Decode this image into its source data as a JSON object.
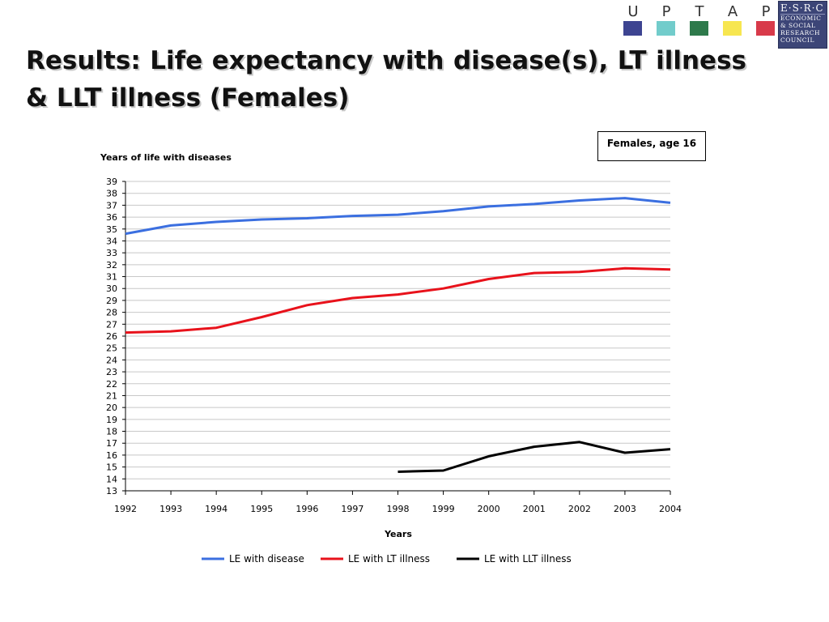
{
  "header": {
    "uptap_letters": [
      "U",
      "P",
      "T",
      "A",
      "P"
    ],
    "uptap_colors": [
      "#3d4491",
      "#72cccb",
      "#2e7a4b",
      "#f7e650",
      "#d83a4a"
    ],
    "esrc_top": "E·S·R·C",
    "esrc_lines": [
      "ECONOMIC",
      "& SOCIAL",
      "RESEARCH",
      "COUNCIL"
    ]
  },
  "slide": {
    "title": "Results: Life expectancy with disease(s), LT illness & LLT illness (Females)"
  },
  "chart_data": {
    "type": "line",
    "title": "Years of life with diseases",
    "annotation": "Females, age 16",
    "xlabel": "Years",
    "ylabel": "",
    "ylim": [
      13,
      39
    ],
    "yticks": [
      13,
      14,
      15,
      16,
      17,
      18,
      19,
      20,
      21,
      22,
      23,
      24,
      25,
      26,
      27,
      28,
      29,
      30,
      31,
      32,
      33,
      34,
      35,
      36,
      37,
      38,
      39
    ],
    "categories": [
      "1992",
      "1993",
      "1994",
      "1995",
      "1996",
      "1997",
      "1998",
      "1999",
      "2000",
      "2001",
      "2002",
      "2003",
      "2004"
    ],
    "grid": "horizontal",
    "legend_position": "bottom",
    "series": [
      {
        "name": "LE with disease",
        "color": "#3b6fe0",
        "values": [
          34.6,
          35.3,
          35.6,
          35.8,
          35.9,
          36.1,
          36.2,
          36.5,
          36.9,
          37.1,
          37.4,
          37.6,
          37.2
        ]
      },
      {
        "name": "LE with LT illness",
        "color": "#e8121b",
        "values": [
          26.3,
          26.4,
          26.7,
          27.6,
          28.6,
          29.2,
          29.5,
          30.0,
          30.8,
          31.3,
          31.4,
          31.7,
          31.6
        ]
      },
      {
        "name": "LE with LLT illness",
        "color": "#000000",
        "values": [
          null,
          null,
          null,
          null,
          null,
          null,
          14.6,
          14.7,
          15.9,
          16.7,
          17.1,
          16.2,
          16.5
        ]
      }
    ]
  }
}
